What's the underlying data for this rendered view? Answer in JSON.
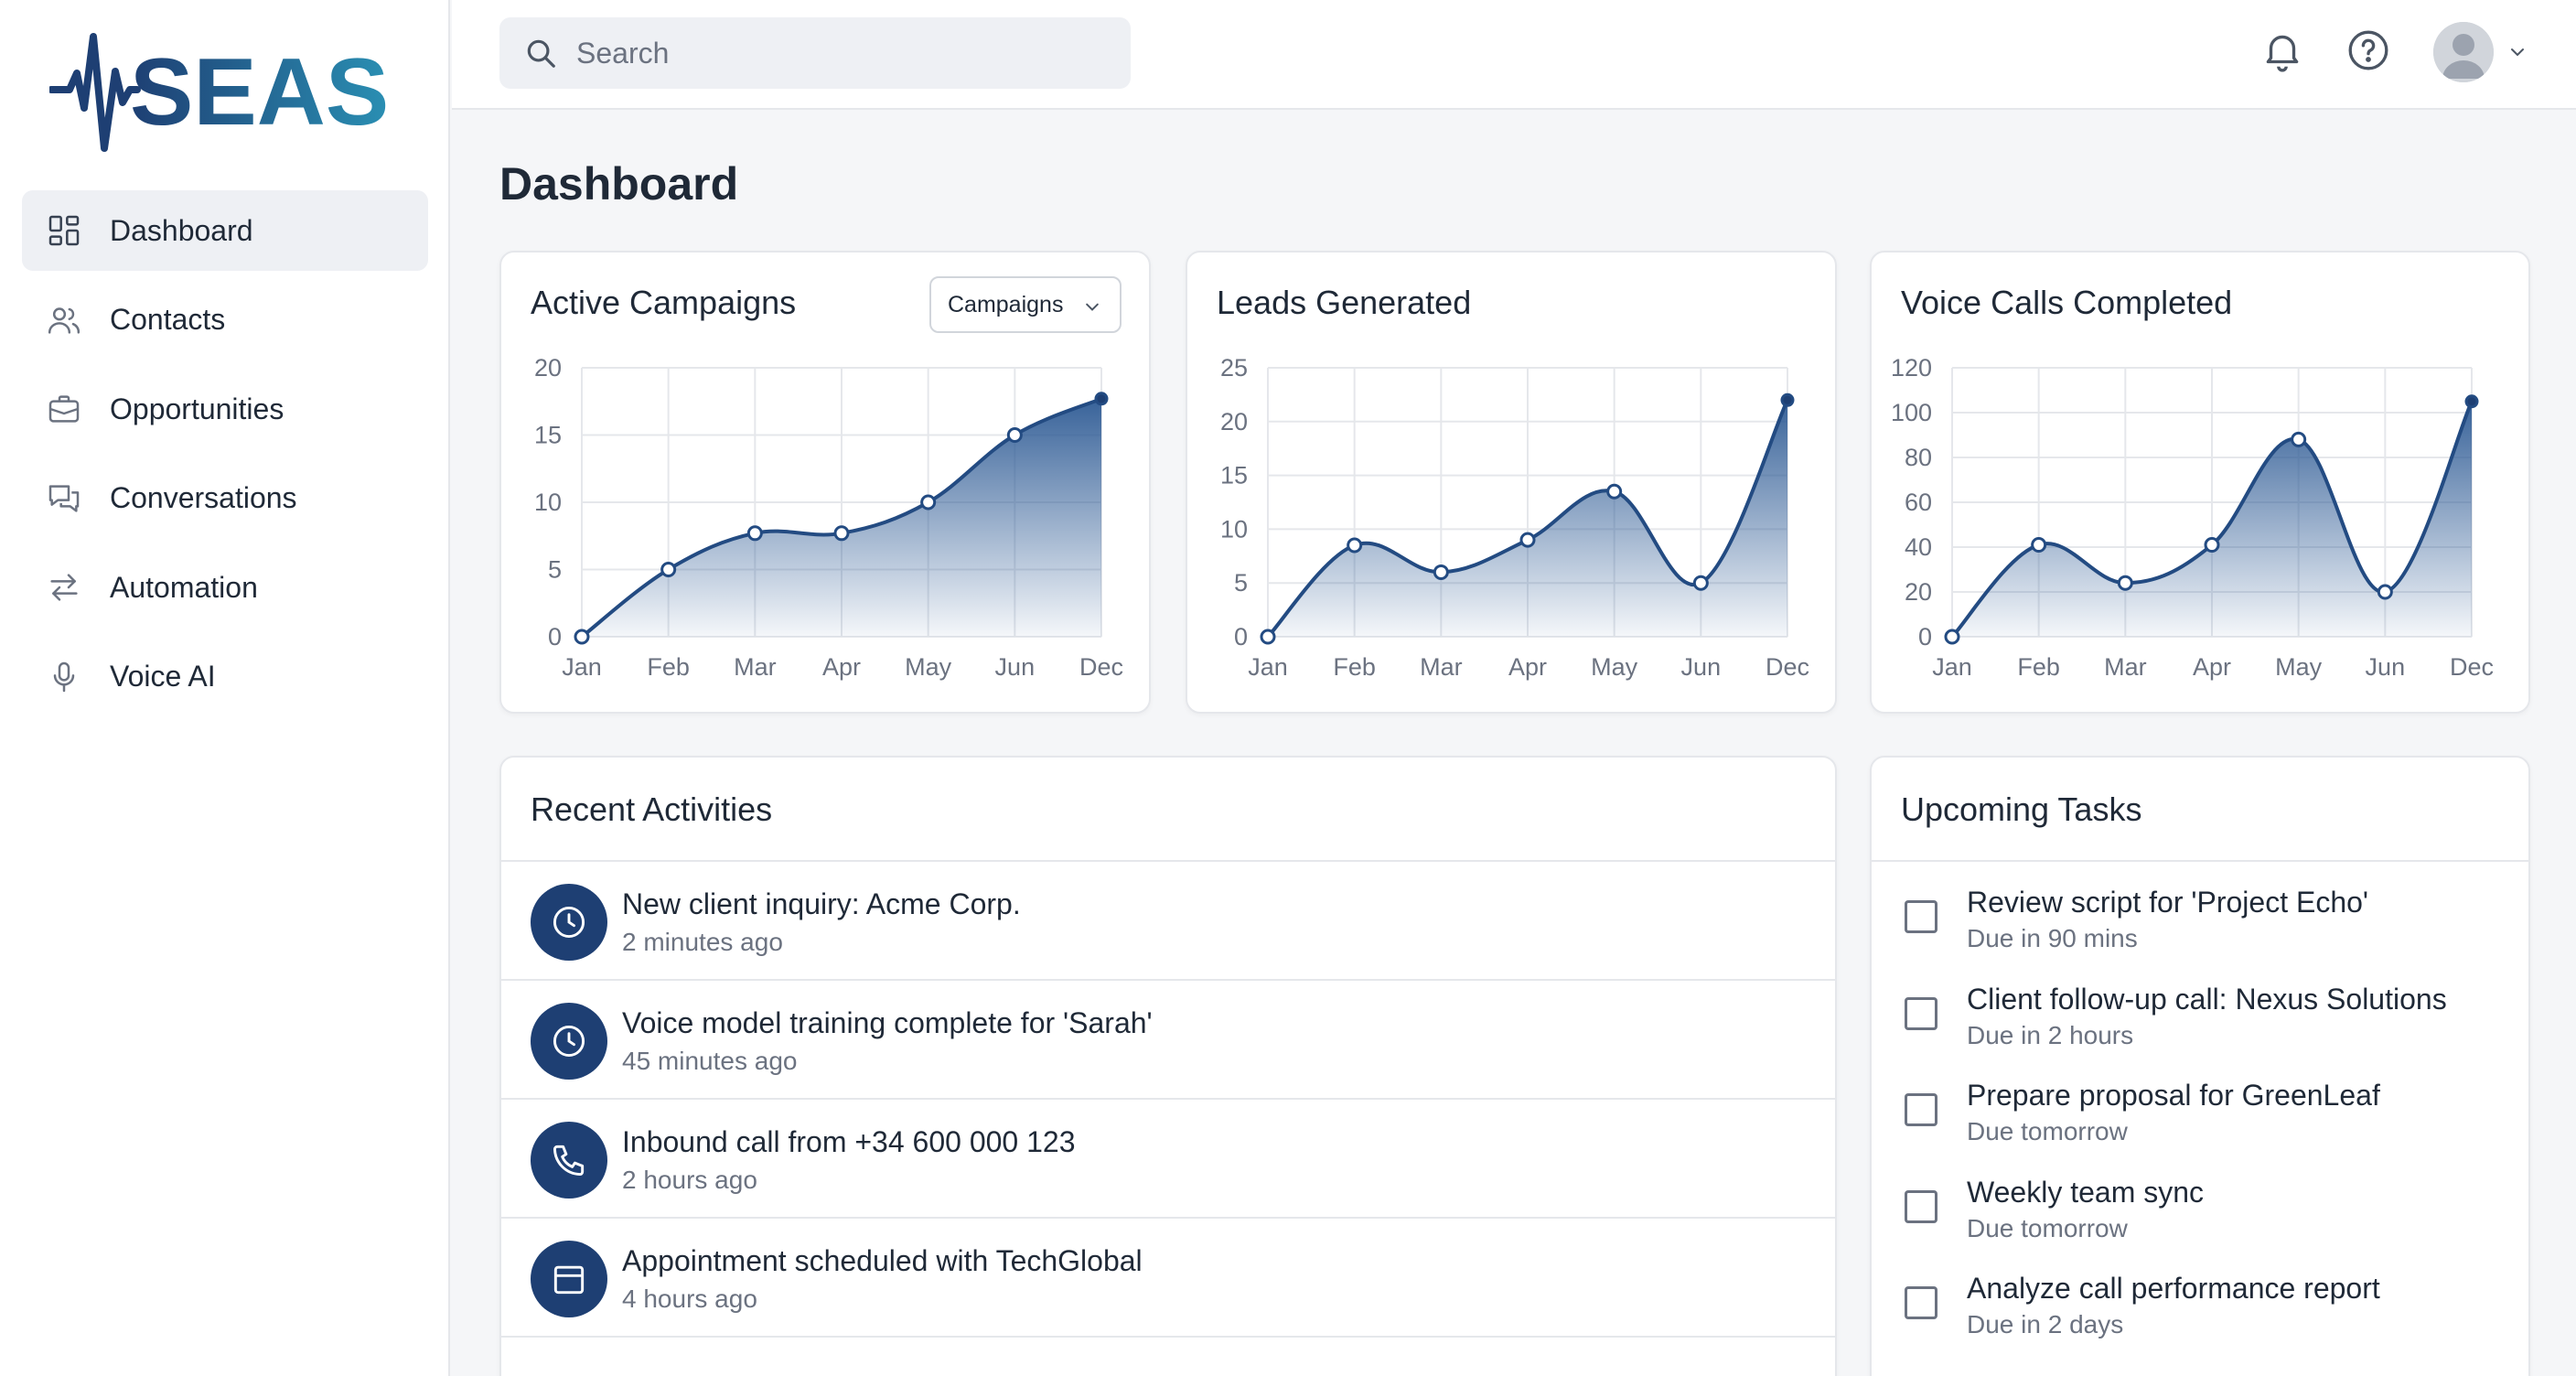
{
  "brand": {
    "name": "SEAS",
    "primary": "#1e3f73",
    "accent": "#2a8fb3"
  },
  "sidebar": {
    "items": [
      {
        "label": "Dashboard",
        "icon": "grid-icon",
        "active": true
      },
      {
        "label": "Contacts",
        "icon": "users-icon",
        "active": false
      },
      {
        "label": "Opportunities",
        "icon": "briefcase-icon",
        "active": false
      },
      {
        "label": "Conversations",
        "icon": "chat-bubbles-icon",
        "active": false
      },
      {
        "label": "Automation",
        "icon": "swap-arrows-icon",
        "active": false
      },
      {
        "label": "Voice AI",
        "icon": "microphone-icon",
        "active": false
      }
    ]
  },
  "header": {
    "search_placeholder": "Search",
    "icons": [
      "bell-icon",
      "help-icon",
      "avatar",
      "chevron-down-icon"
    ]
  },
  "main": {
    "title": "Dashboard",
    "active_campaigns": {
      "title": "Active Campaigns",
      "dropdown": "Campaigns"
    },
    "leads_generated": {
      "title": "Leads Generated"
    },
    "voice_calls": {
      "title": "Voice Calls Completed"
    },
    "recent_activities": {
      "title": "Recent Activities",
      "items": [
        {
          "title": "New client inquiry: Acme Corp.",
          "time": "2 minutes ago",
          "icon": "clock-icon"
        },
        {
          "title": "Voice model training complete for 'Sarah'",
          "time": "45 minutes ago",
          "icon": "clock-icon"
        },
        {
          "title": "Inbound call from +34 600 000 123",
          "time": "2 hours ago",
          "icon": "phone-icon"
        },
        {
          "title": "Appointment scheduled with TechGlobal",
          "time": "4 hours ago",
          "icon": "calendar-icon"
        }
      ]
    },
    "upcoming_tasks": {
      "title": "Upcoming Tasks",
      "items": [
        {
          "title": "Review script for 'Project Echo'",
          "due": "Due in 90 mins"
        },
        {
          "title": "Client follow-up call: Nexus Solutions",
          "due": "Due in 2 hours"
        },
        {
          "title": "Prepare proposal for GreenLeaf",
          "due": "Due tomorrow"
        },
        {
          "title": "Weekly team sync",
          "due": "Due tomorrow"
        },
        {
          "title": "Analyze call performance report",
          "due": "Due in 2 days"
        }
      ]
    }
  },
  "chart_data": [
    {
      "type": "area",
      "title": "Active Campaigns",
      "categories": [
        "Jan",
        "Feb",
        "Mar",
        "Apr",
        "May",
        "Jun",
        "Dec"
      ],
      "values": [
        0,
        5,
        7.7,
        7.7,
        10,
        15,
        17.7
      ],
      "ylim": [
        0,
        20
      ],
      "yticks": [
        0,
        5,
        10,
        15,
        20
      ],
      "grid": true,
      "color": "#2d5a94"
    },
    {
      "type": "area",
      "title": "Leads Generated",
      "categories": [
        "Jan",
        "Feb",
        "Mar",
        "Apr",
        "May",
        "Jun",
        "Dec"
      ],
      "values": [
        0,
        8.5,
        6,
        9,
        13.5,
        5,
        22
      ],
      "ylim": [
        0,
        25
      ],
      "yticks": [
        0,
        5,
        10,
        15,
        20,
        25
      ],
      "grid": true,
      "color": "#2d5a94"
    },
    {
      "type": "area",
      "title": "Voice Calls Completed",
      "categories": [
        "Jan",
        "Feb",
        "Mar",
        "Apr",
        "May",
        "Jun",
        "Dec"
      ],
      "values": [
        0,
        41,
        24,
        41,
        88,
        20,
        105
      ],
      "ylim": [
        0,
        120
      ],
      "yticks": [
        0,
        20,
        40,
        60,
        80,
        100,
        120
      ],
      "grid": true,
      "color": "#2d5a94"
    }
  ]
}
